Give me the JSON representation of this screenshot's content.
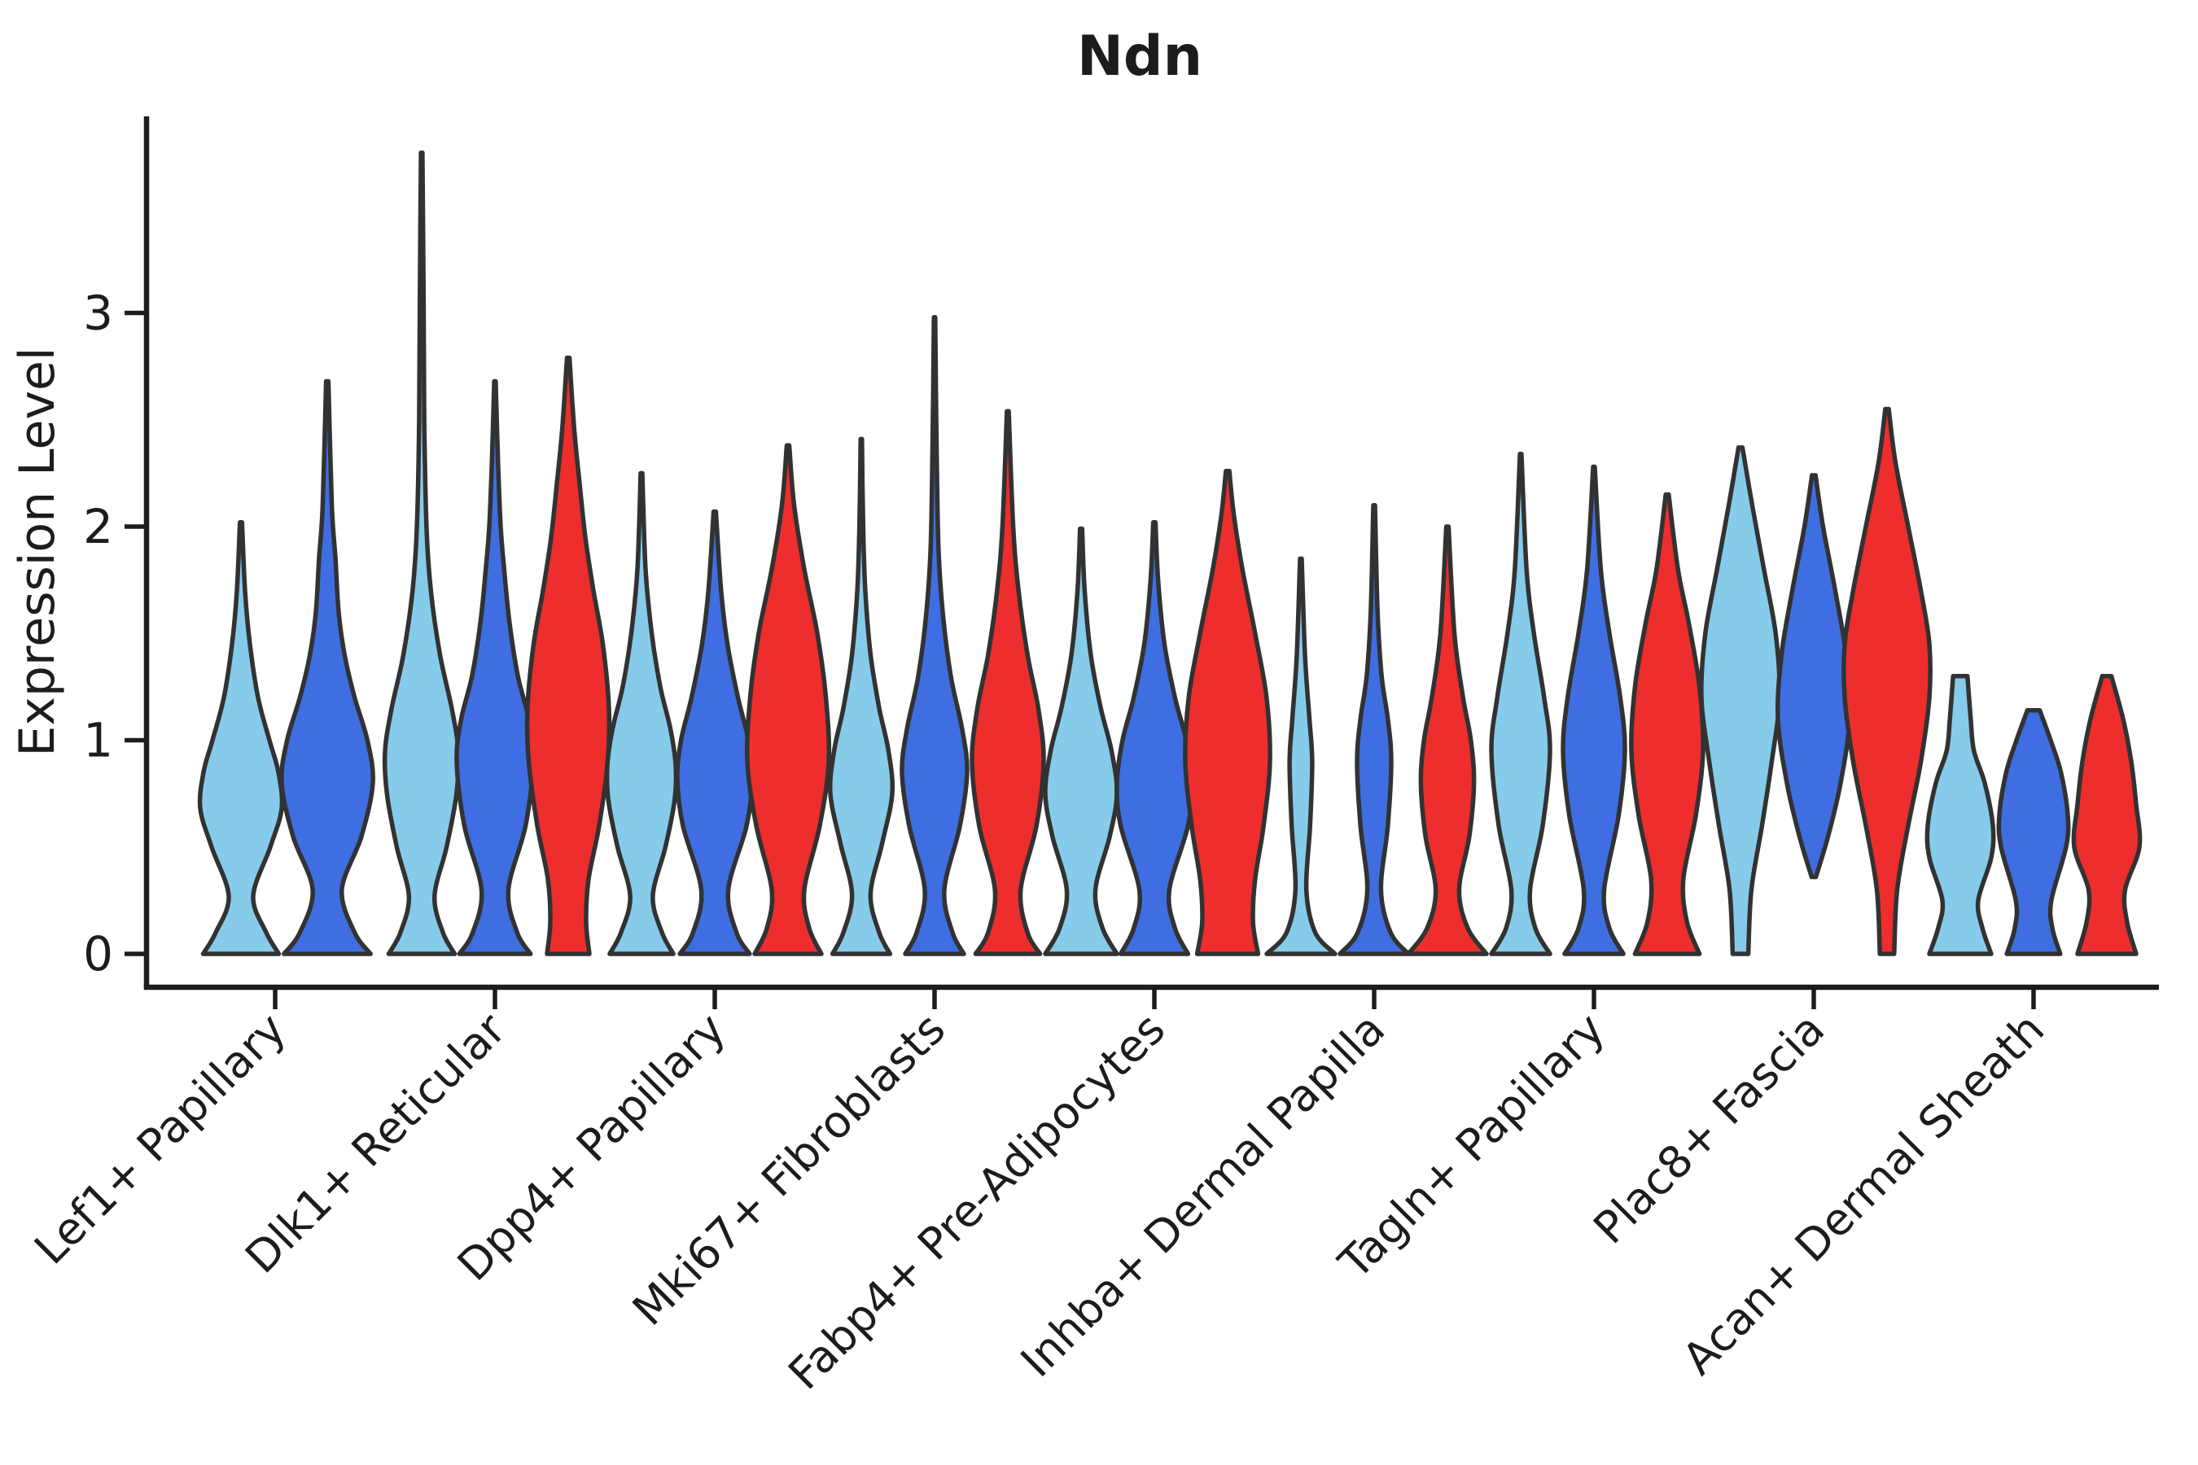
{
  "title": "Ndn",
  "ylabel": "Expression Level",
  "chart_data": {
    "type": "violin",
    "title": "Ndn",
    "ylabel": "Expression Level",
    "xlabel": "",
    "grid": false,
    "legend": "none",
    "x_tick_rotation": 45,
    "ylim": [
      0,
      3.9
    ],
    "yticks": [
      0,
      1,
      2,
      3
    ],
    "categories": [
      "Lef1+ Papillary",
      "Dlk1+ Reticular",
      "Dpp4+ Papillary",
      "Mki67+ Fibroblasts",
      "Fabp4+ Pre-Adipocytes",
      "Inhba+ Dermal Papilla",
      "Tagln+ Papillary",
      "Plac8+ Fascia",
      "Acan+ Dermal Sheath"
    ],
    "series": [
      {
        "key": "light-blue",
        "color": "#87CBEA"
      },
      {
        "key": "dark-blue",
        "color": "#3E6EE2"
      },
      {
        "key": "red",
        "color": "#EE2D2D"
      }
    ],
    "outline_color": "#323232",
    "axis_color": "#1c1c1c",
    "violins": [
      {
        "cat": 0,
        "series": 0,
        "offset": -42,
        "hw": 50,
        "max": 2.02,
        "profile": [
          [
            0,
            0.93
          ],
          [
            0.1,
            0.62
          ],
          [
            0.27,
            0.3
          ],
          [
            0.5,
            0.72
          ],
          [
            0.68,
            1.0
          ],
          [
            0.85,
            0.92
          ],
          [
            1.0,
            0.7
          ],
          [
            1.2,
            0.42
          ],
          [
            1.45,
            0.22
          ],
          [
            1.7,
            0.1
          ],
          [
            2.02,
            0.025
          ]
        ]
      },
      {
        "cat": 0,
        "series": 1,
        "offset": 64,
        "hw": 56,
        "max": 2.68,
        "profile": [
          [
            0,
            0.95
          ],
          [
            0.1,
            0.6
          ],
          [
            0.3,
            0.32
          ],
          [
            0.55,
            0.75
          ],
          [
            0.8,
            1.0
          ],
          [
            1.0,
            0.88
          ],
          [
            1.2,
            0.6
          ],
          [
            1.4,
            0.38
          ],
          [
            1.6,
            0.25
          ],
          [
            1.85,
            0.18
          ],
          [
            2.1,
            0.1
          ],
          [
            2.68,
            0.025
          ]
        ]
      },
      {
        "cat": 1,
        "series": 0,
        "offset": -90,
        "hw": 45,
        "max": 3.75,
        "profile": [
          [
            0,
            0.9
          ],
          [
            0.1,
            0.58
          ],
          [
            0.27,
            0.35
          ],
          [
            0.5,
            0.68
          ],
          [
            0.75,
            0.95
          ],
          [
            0.95,
            1.0
          ],
          [
            1.15,
            0.82
          ],
          [
            1.4,
            0.5
          ],
          [
            1.7,
            0.25
          ],
          [
            2.0,
            0.13
          ],
          [
            2.5,
            0.07
          ],
          [
            3.1,
            0.05
          ],
          [
            3.75,
            0.02
          ]
        ]
      },
      {
        "cat": 1,
        "series": 1,
        "offset": 0,
        "hw": 47,
        "max": 2.68,
        "profile": [
          [
            0,
            0.93
          ],
          [
            0.1,
            0.58
          ],
          [
            0.3,
            0.35
          ],
          [
            0.6,
            0.8
          ],
          [
            0.9,
            1.0
          ],
          [
            1.1,
            0.88
          ],
          [
            1.3,
            0.6
          ],
          [
            1.55,
            0.38
          ],
          [
            1.8,
            0.24
          ],
          [
            2.0,
            0.15
          ],
          [
            2.3,
            0.08
          ],
          [
            2.68,
            0.02
          ]
        ]
      },
      {
        "cat": 1,
        "series": 2,
        "offset": 90,
        "hw": 50,
        "max": 2.79,
        "profile": [
          [
            0,
            0.52
          ],
          [
            0.15,
            0.44
          ],
          [
            0.35,
            0.5
          ],
          [
            0.6,
            0.76
          ],
          [
            0.9,
            0.97
          ],
          [
            1.15,
            1.0
          ],
          [
            1.45,
            0.85
          ],
          [
            1.7,
            0.62
          ],
          [
            1.95,
            0.42
          ],
          [
            2.2,
            0.28
          ],
          [
            2.45,
            0.15
          ],
          [
            2.79,
            0.03
          ]
        ]
      },
      {
        "cat": 2,
        "series": 0,
        "offset": -90,
        "hw": 42,
        "max": 2.25,
        "profile": [
          [
            0,
            0.93
          ],
          [
            0.1,
            0.6
          ],
          [
            0.27,
            0.33
          ],
          [
            0.5,
            0.7
          ],
          [
            0.72,
            0.97
          ],
          [
            0.88,
            1.0
          ],
          [
            1.05,
            0.85
          ],
          [
            1.25,
            0.55
          ],
          [
            1.5,
            0.3
          ],
          [
            1.8,
            0.12
          ],
          [
            2.25,
            0.025
          ]
        ]
      },
      {
        "cat": 2,
        "series": 1,
        "offset": 0,
        "hw": 46,
        "max": 2.07,
        "profile": [
          [
            0,
            0.93
          ],
          [
            0.1,
            0.58
          ],
          [
            0.3,
            0.36
          ],
          [
            0.6,
            0.85
          ],
          [
            0.82,
            1.0
          ],
          [
            1.0,
            0.9
          ],
          [
            1.2,
            0.62
          ],
          [
            1.45,
            0.34
          ],
          [
            1.7,
            0.17
          ],
          [
            2.07,
            0.03
          ]
        ]
      },
      {
        "cat": 2,
        "series": 2,
        "offset": 90,
        "hw": 50,
        "max": 2.38,
        "profile": [
          [
            0,
            0.82
          ],
          [
            0.12,
            0.52
          ],
          [
            0.3,
            0.4
          ],
          [
            0.6,
            0.78
          ],
          [
            0.9,
            1.0
          ],
          [
            1.2,
            0.93
          ],
          [
            1.5,
            0.72
          ],
          [
            1.8,
            0.4
          ],
          [
            2.1,
            0.15
          ],
          [
            2.38,
            0.03
          ]
        ]
      },
      {
        "cat": 3,
        "series": 0,
        "offset": -90,
        "hw": 38,
        "max": 2.41,
        "profile": [
          [
            0,
            0.93
          ],
          [
            0.1,
            0.58
          ],
          [
            0.28,
            0.3
          ],
          [
            0.52,
            0.68
          ],
          [
            0.75,
            1.0
          ],
          [
            0.95,
            0.88
          ],
          [
            1.15,
            0.58
          ],
          [
            1.4,
            0.3
          ],
          [
            1.7,
            0.13
          ],
          [
            2.0,
            0.06
          ],
          [
            2.41,
            0.02
          ]
        ]
      },
      {
        "cat": 3,
        "series": 1,
        "offset": 0,
        "hw": 40,
        "max": 2.98,
        "profile": [
          [
            0,
            0.9
          ],
          [
            0.1,
            0.55
          ],
          [
            0.3,
            0.3
          ],
          [
            0.6,
            0.78
          ],
          [
            0.85,
            1.0
          ],
          [
            1.05,
            0.85
          ],
          [
            1.3,
            0.5
          ],
          [
            1.6,
            0.25
          ],
          [
            1.9,
            0.12
          ],
          [
            2.4,
            0.06
          ],
          [
            2.98,
            0.02
          ]
        ]
      },
      {
        "cat": 3,
        "series": 2,
        "offset": 90,
        "hw": 44,
        "max": 2.54,
        "profile": [
          [
            0,
            0.9
          ],
          [
            0.1,
            0.55
          ],
          [
            0.3,
            0.36
          ],
          [
            0.6,
            0.8
          ],
          [
            0.9,
            1.0
          ],
          [
            1.15,
            0.85
          ],
          [
            1.4,
            0.55
          ],
          [
            1.7,
            0.3
          ],
          [
            2.0,
            0.15
          ],
          [
            2.54,
            0.025
          ]
        ]
      },
      {
        "cat": 4,
        "series": 0,
        "offset": -90,
        "hw": 44,
        "max": 1.99,
        "profile": [
          [
            0,
            1.0
          ],
          [
            0.12,
            0.6
          ],
          [
            0.3,
            0.4
          ],
          [
            0.55,
            0.8
          ],
          [
            0.75,
            1.0
          ],
          [
            0.95,
            0.85
          ],
          [
            1.15,
            0.55
          ],
          [
            1.4,
            0.27
          ],
          [
            1.7,
            0.1
          ],
          [
            1.99,
            0.03
          ]
        ]
      },
      {
        "cat": 4,
        "series": 1,
        "offset": 0,
        "hw": 46,
        "max": 2.02,
        "profile": [
          [
            0,
            0.9
          ],
          [
            0.12,
            0.55
          ],
          [
            0.3,
            0.4
          ],
          [
            0.6,
            0.9
          ],
          [
            0.8,
            1.0
          ],
          [
            1.0,
            0.85
          ],
          [
            1.2,
            0.55
          ],
          [
            1.45,
            0.27
          ],
          [
            1.75,
            0.1
          ],
          [
            2.02,
            0.03
          ]
        ]
      },
      {
        "cat": 4,
        "series": 2,
        "offset": 90,
        "hw": 52,
        "max": 2.26,
        "profile": [
          [
            0,
            0.72
          ],
          [
            0.15,
            0.6
          ],
          [
            0.35,
            0.65
          ],
          [
            0.6,
            0.85
          ],
          [
            0.9,
            1.0
          ],
          [
            1.2,
            0.92
          ],
          [
            1.5,
            0.65
          ],
          [
            1.8,
            0.35
          ],
          [
            2.05,
            0.15
          ],
          [
            2.26,
            0.04
          ]
        ]
      },
      {
        "cat": 5,
        "series": 0,
        "offset": -90,
        "hw": 42,
        "max": 1.85,
        "profile": [
          [
            0,
            1.0
          ],
          [
            0.1,
            0.42
          ],
          [
            0.3,
            0.16
          ],
          [
            0.6,
            0.27
          ],
          [
            0.9,
            0.33
          ],
          [
            1.1,
            0.25
          ],
          [
            1.4,
            0.12
          ],
          [
            1.85,
            0.025
          ]
        ]
      },
      {
        "cat": 5,
        "series": 1,
        "offset": 0,
        "hw": 42,
        "max": 2.1,
        "profile": [
          [
            0,
            1.0
          ],
          [
            0.1,
            0.48
          ],
          [
            0.3,
            0.2
          ],
          [
            0.6,
            0.4
          ],
          [
            0.9,
            0.5
          ],
          [
            1.1,
            0.4
          ],
          [
            1.3,
            0.22
          ],
          [
            1.6,
            0.1
          ],
          [
            2.1,
            0.025
          ]
        ]
      },
      {
        "cat": 5,
        "series": 2,
        "offset": 90,
        "hw": 48,
        "max": 2.0,
        "profile": [
          [
            0,
            1.0
          ],
          [
            0.12,
            0.52
          ],
          [
            0.3,
            0.3
          ],
          [
            0.55,
            0.56
          ],
          [
            0.8,
            0.68
          ],
          [
            1.0,
            0.6
          ],
          [
            1.2,
            0.4
          ],
          [
            1.5,
            0.18
          ],
          [
            2.0,
            0.03
          ]
        ]
      },
      {
        "cat": 6,
        "series": 0,
        "offset": -90,
        "hw": 36,
        "max": 2.34,
        "profile": [
          [
            0,
            1.0
          ],
          [
            0.12,
            0.5
          ],
          [
            0.3,
            0.32
          ],
          [
            0.6,
            0.75
          ],
          [
            0.95,
            1.0
          ],
          [
            1.2,
            0.8
          ],
          [
            1.5,
            0.45
          ],
          [
            1.8,
            0.2
          ],
          [
            2.34,
            0.025
          ]
        ]
      },
      {
        "cat": 6,
        "series": 1,
        "offset": 0,
        "hw": 38,
        "max": 2.28,
        "profile": [
          [
            0,
            0.95
          ],
          [
            0.12,
            0.5
          ],
          [
            0.3,
            0.33
          ],
          [
            0.65,
            0.8
          ],
          [
            0.95,
            1.0
          ],
          [
            1.2,
            0.85
          ],
          [
            1.5,
            0.5
          ],
          [
            1.8,
            0.22
          ],
          [
            2.28,
            0.025
          ]
        ]
      },
      {
        "cat": 6,
        "series": 2,
        "offset": 90,
        "hw": 44,
        "max": 2.15,
        "profile": [
          [
            0,
            0.9
          ],
          [
            0.15,
            0.55
          ],
          [
            0.35,
            0.45
          ],
          [
            0.65,
            0.8
          ],
          [
            0.95,
            1.0
          ],
          [
            1.25,
            0.9
          ],
          [
            1.55,
            0.6
          ],
          [
            1.8,
            0.3
          ],
          [
            2.15,
            0.04
          ]
        ]
      },
      {
        "cat": 7,
        "series": 0,
        "offset": -90,
        "hw": 48,
        "max": 2.37,
        "profile": [
          [
            0,
            0.2
          ],
          [
            0.3,
            0.28
          ],
          [
            0.6,
            0.55
          ],
          [
            0.9,
            0.8
          ],
          [
            1.2,
            1.0
          ],
          [
            1.5,
            0.9
          ],
          [
            1.8,
            0.6
          ],
          [
            2.1,
            0.3
          ],
          [
            2.37,
            0.05
          ]
        ]
      },
      {
        "cat": 7,
        "series": 1,
        "offset": 0,
        "hw": 44,
        "max": 2.24,
        "profile": [
          [
            0.36,
            0.06
          ],
          [
            0.55,
            0.4
          ],
          [
            0.8,
            0.75
          ],
          [
            1.1,
            1.0
          ],
          [
            1.4,
            0.9
          ],
          [
            1.7,
            0.6
          ],
          [
            2.0,
            0.26
          ],
          [
            2.24,
            0.05
          ]
        ]
      },
      {
        "cat": 7,
        "series": 2,
        "offset": 90,
        "hw": 52,
        "max": 2.55,
        "profile": [
          [
            0,
            0.17
          ],
          [
            0.3,
            0.24
          ],
          [
            0.6,
            0.5
          ],
          [
            0.9,
            0.8
          ],
          [
            1.2,
            1.0
          ],
          [
            1.45,
            1.0
          ],
          [
            1.7,
            0.8
          ],
          [
            2.0,
            0.5
          ],
          [
            2.3,
            0.2
          ],
          [
            2.55,
            0.04
          ]
        ]
      },
      {
        "cat": 8,
        "series": 0,
        "offset": -90,
        "hw": 40,
        "max": 1.3,
        "profile": [
          [
            0,
            0.95
          ],
          [
            0.12,
            0.68
          ],
          [
            0.25,
            0.55
          ],
          [
            0.45,
            0.95
          ],
          [
            0.6,
            1.0
          ],
          [
            0.8,
            0.75
          ],
          [
            0.95,
            0.42
          ],
          [
            1.1,
            0.32
          ],
          [
            1.3,
            0.22
          ]
        ]
      },
      {
        "cat": 8,
        "series": 1,
        "offset": 0,
        "hw": 42,
        "max": 1.14,
        "profile": [
          [
            0,
            0.78
          ],
          [
            0.12,
            0.55
          ],
          [
            0.25,
            0.52
          ],
          [
            0.5,
            0.95
          ],
          [
            0.65,
            1.0
          ],
          [
            0.85,
            0.8
          ],
          [
            1.0,
            0.5
          ],
          [
            1.14,
            0.18
          ]
        ]
      },
      {
        "cat": 8,
        "series": 2,
        "offset": 90,
        "hw": 40,
        "max": 1.3,
        "profile": [
          [
            0,
            0.9
          ],
          [
            0.15,
            0.62
          ],
          [
            0.3,
            0.56
          ],
          [
            0.5,
            1.0
          ],
          [
            0.7,
            0.9
          ],
          [
            0.9,
            0.75
          ],
          [
            1.1,
            0.5
          ],
          [
            1.3,
            0.14
          ]
        ]
      }
    ]
  }
}
